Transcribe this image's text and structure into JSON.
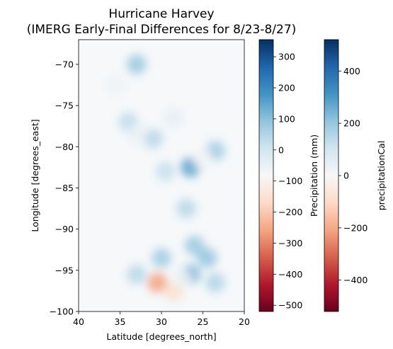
{
  "chart_data": {
    "type": "heatmap",
    "title_line1": "Hurricane Harvey",
    "title_line2": "(IMERG Early-Final Differences for 8/23-8/27)",
    "xlabel": "Latitude [degrees_north]",
    "ylabel": "Longitude [degrees_east]",
    "xlim": [
      40,
      20
    ],
    "ylim": [
      -100,
      -67
    ],
    "x_ticks": [
      40,
      35,
      30,
      25,
      20
    ],
    "x_tick_labels": [
      "40",
      "35",
      "30",
      "25",
      "20"
    ],
    "y_ticks": [
      -100,
      -95,
      -90,
      -85,
      -80,
      -75,
      -70
    ],
    "y_tick_labels": [
      "−100",
      "−95",
      "−90",
      "−85",
      "−80",
      "−75",
      "−70"
    ],
    "colormap": "RdBu",
    "colorbars": [
      {
        "label": "Precipitation (mm)",
        "range": [
          -520,
          355
        ],
        "ticks": [
          300,
          200,
          100,
          0,
          -100,
          -200,
          -300,
          -400,
          -500
        ],
        "tick_labels": [
          "300",
          "200",
          "100",
          "0",
          "−100",
          "−200",
          "−300",
          "−400",
          "−500"
        ]
      },
      {
        "label": "precipitationCal",
        "range": [
          -520,
          520
        ],
        "ticks": [
          400,
          200,
          0,
          -200,
          -400
        ],
        "tick_labels": [
          "400",
          "200",
          "0",
          "−200",
          "−400"
        ]
      }
    ],
    "features": [
      {
        "lat": 33.0,
        "lon": -70.0,
        "value": 80
      },
      {
        "lat": 35.5,
        "lon": -72.5,
        "value": -60
      },
      {
        "lat": 34.0,
        "lon": -77.0,
        "value": 30
      },
      {
        "lat": 28.5,
        "lon": -76.5,
        "value": -40
      },
      {
        "lat": 31.0,
        "lon": -79.0,
        "value": 40
      },
      {
        "lat": 33.0,
        "lon": -78.5,
        "value": -50
      },
      {
        "lat": 26.5,
        "lon": -82.5,
        "value": 150
      },
      {
        "lat": 23.5,
        "lon": -80.5,
        "value": 70
      },
      {
        "lat": 25.0,
        "lon": -81.5,
        "value": -70
      },
      {
        "lat": 29.5,
        "lon": -83.0,
        "value": 20
      },
      {
        "lat": 27.0,
        "lon": -87.5,
        "value": 40
      },
      {
        "lat": 26.0,
        "lon": -92.0,
        "value": 80
      },
      {
        "lat": 30.0,
        "lon": -93.5,
        "value": 70
      },
      {
        "lat": 24.5,
        "lon": -93.5,
        "value": 90
      },
      {
        "lat": 26.5,
        "lon": -95.5,
        "value": 120
      },
      {
        "lat": 30.5,
        "lon": -96.5,
        "value": -260
      },
      {
        "lat": 28.5,
        "lon": -97.5,
        "value": -160
      },
      {
        "lat": 27.5,
        "lon": -96.0,
        "value": -60
      },
      {
        "lat": 33.0,
        "lon": -95.5,
        "value": 40
      },
      {
        "lat": 23.5,
        "lon": -96.5,
        "value": 50
      }
    ]
  }
}
